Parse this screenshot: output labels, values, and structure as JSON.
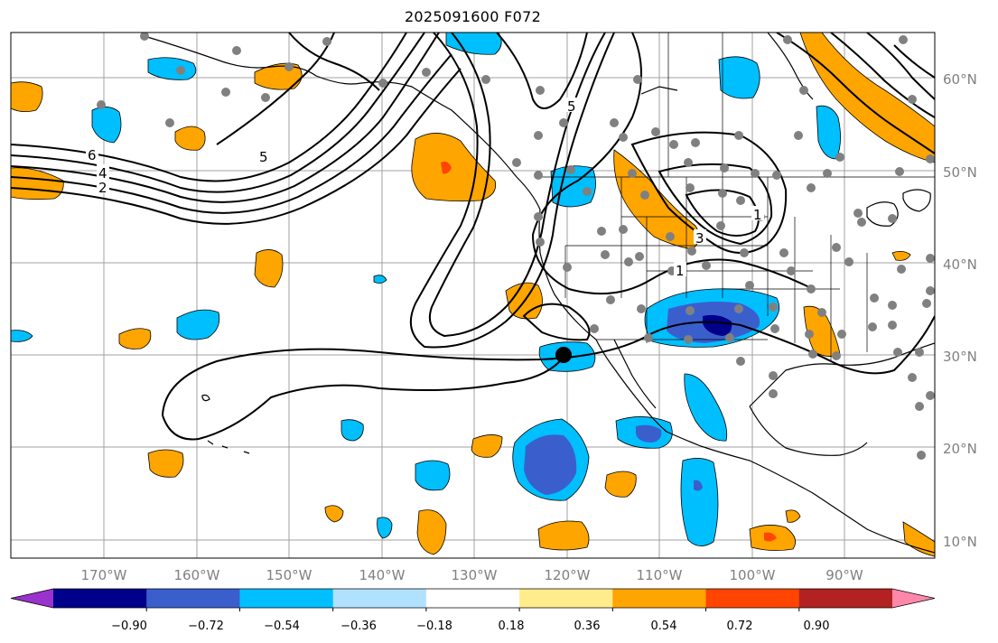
{
  "title": "2025091600 F072",
  "lat_labels": [
    "60°N",
    "50°N",
    "40°N",
    "30°N",
    "20°N",
    "10°N"
  ],
  "lon_labels": [
    "170°W",
    "160°W",
    "150°W",
    "140°W",
    "130°W",
    "120°W",
    "110°W",
    "100°W",
    "90°W"
  ],
  "colorbar": {
    "tick_labels": [
      "−0.90",
      "−0.72",
      "−0.54",
      "−0.36",
      "−0.18",
      "0.18",
      "0.36",
      "0.54",
      "0.72",
      "0.90"
    ],
    "colors": [
      "#9933cc",
      "#00008b",
      "#3a5fcd",
      "#00bfff",
      "#b0e2ff",
      "#ffffff",
      "#ffec8b",
      "#ffa500",
      "#ff4500",
      "#b22222",
      "#ff88aa"
    ]
  },
  "contour_labels": [
    "6",
    "4",
    "2",
    "5",
    "5",
    "3",
    "1",
    "1"
  ],
  "colors": {
    "grid": "#a0a0a0",
    "coast": "#000000",
    "dots": "#808080",
    "marker": "#000000"
  }
}
